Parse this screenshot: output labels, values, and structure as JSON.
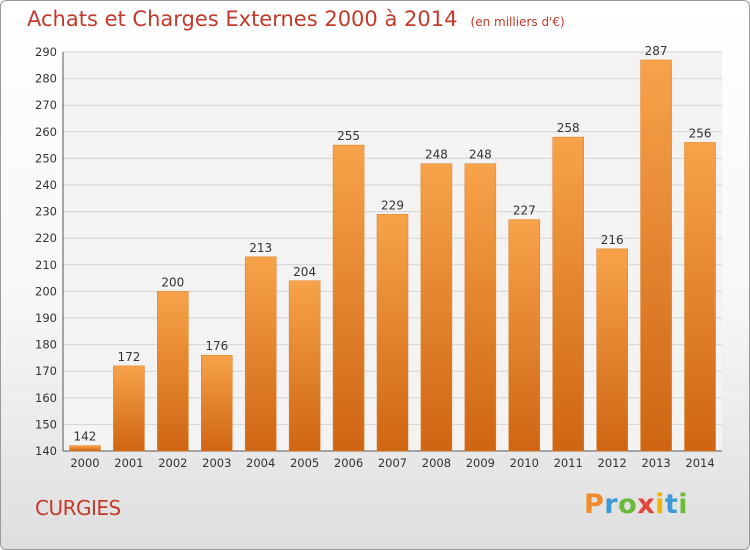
{
  "chart_data": {
    "type": "bar",
    "title": "Achats et Charges Externes 2000 à 2014",
    "subtitle": "(en milliers d'€)",
    "categories": [
      "2000",
      "2001",
      "2002",
      "2003",
      "2004",
      "2005",
      "2006",
      "2007",
      "2008",
      "2009",
      "2010",
      "2011",
      "2012",
      "2013",
      "2014"
    ],
    "values": [
      142,
      172,
      200,
      176,
      213,
      204,
      255,
      229,
      248,
      248,
      227,
      258,
      216,
      287,
      256
    ],
    "ylim": [
      140,
      290
    ],
    "yticks": [
      140,
      150,
      160,
      170,
      180,
      190,
      200,
      210,
      220,
      230,
      240,
      250,
      260,
      270,
      280,
      290
    ],
    "grid": true,
    "bar_color": "#f08a2a",
    "bar_color_light": "#f7a34a",
    "bar_color_dark": "#cf6512"
  },
  "place": "CURGIES",
  "logo": {
    "letters": [
      "P",
      "r",
      "o",
      "x",
      "i",
      "t",
      "i"
    ],
    "colors": [
      "#f08a2a",
      "#3c9ad6",
      "#6cba3c",
      "#e0463a",
      "#f0b400",
      "#3c9ad6",
      "#6cba3c"
    ]
  },
  "colors": {
    "accent": "#c23a2a",
    "grid": "#d3d3d3",
    "axis_text": "#333333"
  }
}
